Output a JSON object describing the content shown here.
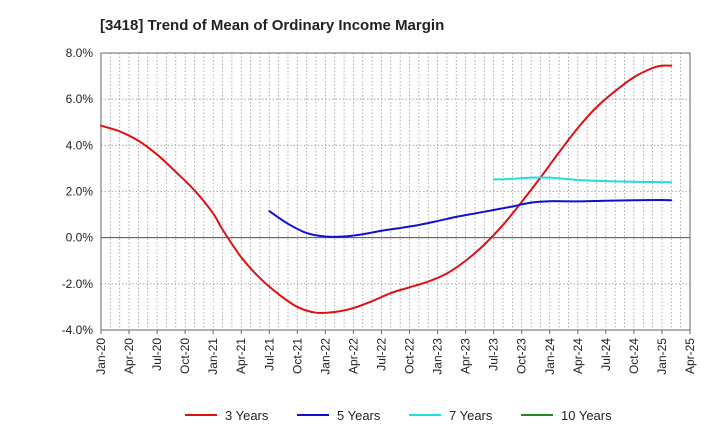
{
  "chart_data": {
    "type": "line",
    "title": "[3418]  Trend of Mean of Ordinary Income Margin",
    "xlabel": "",
    "ylabel": "",
    "y_unit": "%",
    "ylim": [
      -4.0,
      8.0
    ],
    "y_ticks": [
      -4.0,
      -2.0,
      0.0,
      2.0,
      4.0,
      6.0,
      8.0
    ],
    "y_tick_labels": [
      "-4.0%",
      "-2.0%",
      "0.0%",
      "2.0%",
      "4.0%",
      "6.0%",
      "8.0%"
    ],
    "xlim": [
      "2020-01",
      "2025-04"
    ],
    "x_tick_labels": [
      "Jan-20",
      "Apr-20",
      "Jul-20",
      "Oct-20",
      "Jan-21",
      "Apr-21",
      "Jul-21",
      "Oct-21",
      "Jan-22",
      "Apr-22",
      "Jul-22",
      "Oct-22",
      "Jan-23",
      "Apr-23",
      "Jul-23",
      "Oct-23",
      "Jan-24",
      "Apr-24",
      "Jul-24",
      "Oct-24",
      "Jan-25",
      "Apr-25"
    ],
    "grid": true,
    "legend_position": "bottom",
    "series": [
      {
        "name": "3 Years",
        "color": "#dd1111",
        "points": [
          [
            "2020-01",
            4.85
          ],
          [
            "2020-03",
            4.6
          ],
          [
            "2020-05",
            4.2
          ],
          [
            "2020-07",
            3.6
          ],
          [
            "2020-09",
            2.85
          ],
          [
            "2020-11",
            2.05
          ],
          [
            "2021-01",
            1.05
          ],
          [
            "2021-02",
            0.35
          ],
          [
            "2021-04",
            -0.85
          ],
          [
            "2021-06",
            -1.75
          ],
          [
            "2021-08",
            -2.45
          ],
          [
            "2021-10",
            -3.0
          ],
          [
            "2021-12",
            -3.25
          ],
          [
            "2022-02",
            -3.22
          ],
          [
            "2022-04",
            -3.05
          ],
          [
            "2022-06",
            -2.75
          ],
          [
            "2022-08",
            -2.4
          ],
          [
            "2022-10",
            -2.15
          ],
          [
            "2022-12",
            -1.9
          ],
          [
            "2023-02",
            -1.55
          ],
          [
            "2023-04",
            -1.0
          ],
          [
            "2023-06",
            -0.3
          ],
          [
            "2023-08",
            0.55
          ],
          [
            "2023-10",
            1.55
          ],
          [
            "2023-12",
            2.6
          ],
          [
            "2024-02",
            3.7
          ],
          [
            "2024-04",
            4.75
          ],
          [
            "2024-06",
            5.65
          ],
          [
            "2024-08",
            6.35
          ],
          [
            "2024-10",
            6.95
          ],
          [
            "2024-12",
            7.35
          ],
          [
            "2025-01",
            7.45
          ],
          [
            "2025-02",
            7.45
          ]
        ]
      },
      {
        "name": "5 Years",
        "color": "#1111cc",
        "points": [
          [
            "2021-07",
            1.15
          ],
          [
            "2021-09",
            0.6
          ],
          [
            "2021-11",
            0.2
          ],
          [
            "2022-01",
            0.05
          ],
          [
            "2022-03",
            0.05
          ],
          [
            "2022-05",
            0.15
          ],
          [
            "2022-07",
            0.3
          ],
          [
            "2022-09",
            0.42
          ],
          [
            "2022-11",
            0.55
          ],
          [
            "2023-01",
            0.72
          ],
          [
            "2023-03",
            0.9
          ],
          [
            "2023-05",
            1.05
          ],
          [
            "2023-07",
            1.2
          ],
          [
            "2023-09",
            1.35
          ],
          [
            "2023-11",
            1.52
          ],
          [
            "2024-01",
            1.58
          ],
          [
            "2024-04",
            1.57
          ],
          [
            "2024-07",
            1.6
          ],
          [
            "2024-10",
            1.62
          ],
          [
            "2025-01",
            1.63
          ],
          [
            "2025-02",
            1.62
          ]
        ]
      },
      {
        "name": "7 Years",
        "color": "#22dddd",
        "points": [
          [
            "2023-07",
            2.52
          ],
          [
            "2023-09",
            2.55
          ],
          [
            "2023-11",
            2.6
          ],
          [
            "2024-01",
            2.6
          ],
          [
            "2024-04",
            2.5
          ],
          [
            "2024-07",
            2.45
          ],
          [
            "2024-10",
            2.42
          ],
          [
            "2025-02",
            2.4
          ]
        ]
      },
      {
        "name": "10 Years",
        "color": "#228822",
        "points": []
      }
    ]
  }
}
